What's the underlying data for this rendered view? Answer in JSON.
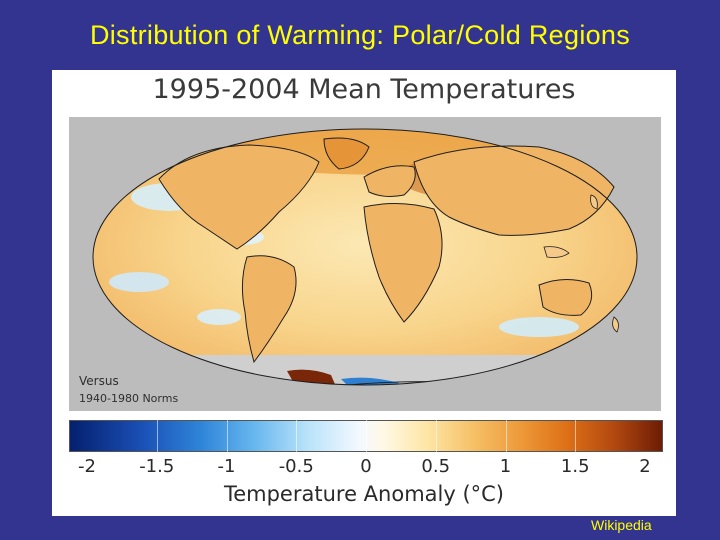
{
  "slide": {
    "title": "Distribution of Warming: Polar/Cold Regions",
    "source_label": "Wikipedia"
  },
  "figure": {
    "title": "1995-2004 Mean Temperatures",
    "versus_line1": "Versus",
    "versus_line2": "1940-1980 Norms"
  },
  "colorbar": {
    "axis_label": "Temperature Anomaly (°C)",
    "range": [
      -2,
      2
    ],
    "ticks": [
      "-2",
      "-1.5",
      "-1",
      "-0.5",
      "0",
      "0.5",
      "1",
      "1.5",
      "2"
    ]
  },
  "colors": {
    "background": "#32348f",
    "title": "#ffff00",
    "ocean_mean": "#fbe3ab",
    "arctic_warm": "#e4902f",
    "antarctic_cool": "#2f80d0"
  }
}
